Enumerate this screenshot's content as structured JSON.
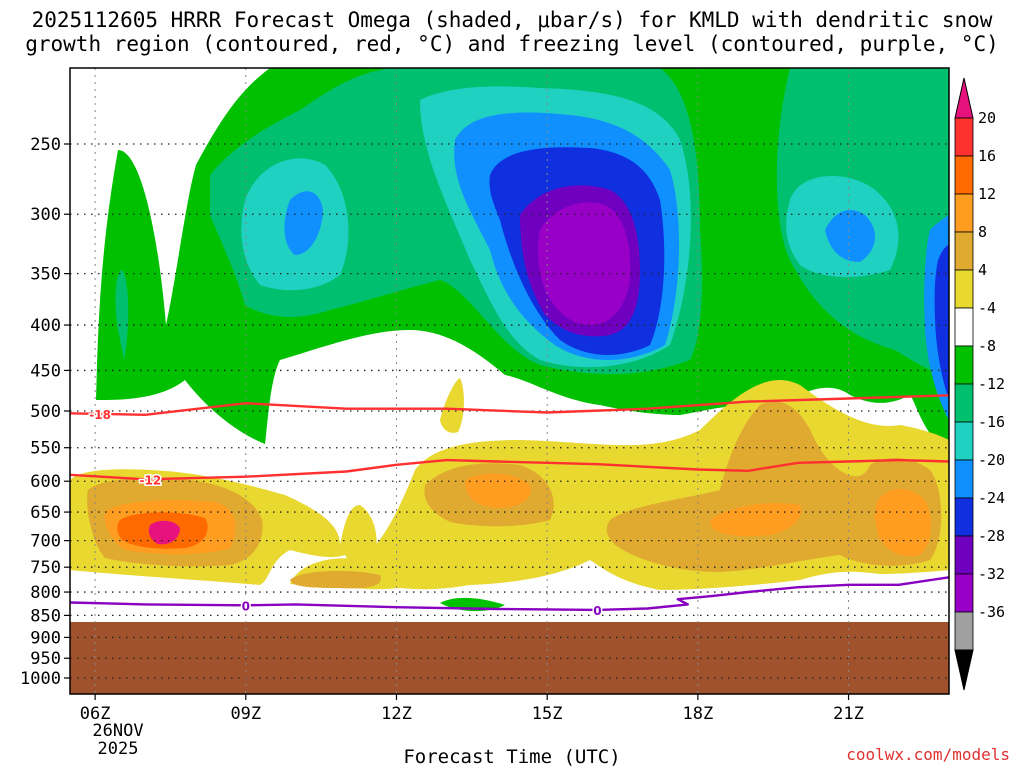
{
  "title_lines": [
    "2025112605 HRRR Forecast Omega (shaded, μbar/s) for KMLD with dendritic snow",
    "growth region (contoured, red, °C) and freezing level (contoured, purple, °C)"
  ],
  "credit": "coolwx.com/models",
  "chart_data": {
    "type": "heatmap",
    "xlabel": "Forecast Time (UTC)",
    "ylabel": "",
    "x_ticks": [
      "06Z",
      "09Z",
      "12Z",
      "15Z",
      "18Z",
      "21Z"
    ],
    "x_date_label": [
      "26NOV",
      "2025"
    ],
    "x_range_hours": [
      5.5,
      23.0
    ],
    "y_ticks": [
      250,
      300,
      350,
      400,
      450,
      500,
      550,
      600,
      650,
      700,
      750,
      800,
      850,
      900,
      950,
      1000
    ],
    "y_range_hpa": [
      200,
      1000
    ],
    "ground_level_hpa": 870,
    "colorbar": {
      "labels": [
        "20",
        "16",
        "12",
        "8",
        "4",
        "-4",
        "-8",
        "-12",
        "-16",
        "-20",
        "-24",
        "-28",
        "-32",
        "-36"
      ],
      "colors": [
        "#e8127f",
        "#ff3030",
        "#ff6a00",
        "#ff9d20",
        "#e0aa30",
        "#e8d830",
        "#ffffff",
        "#00c000",
        "#00c070",
        "#20d0c0",
        "#1090ff",
        "#1030e0",
        "#7000c0",
        "#9800c8",
        "#a0a0a0",
        "#000000"
      ]
    },
    "contours": [
      {
        "name": "-18",
        "color": "#ff3030",
        "points": [
          [
            5.5,
            503
          ],
          [
            7,
            505
          ],
          [
            9,
            490
          ],
          [
            11,
            497
          ],
          [
            13,
            497
          ],
          [
            15,
            502
          ],
          [
            17,
            497
          ],
          [
            19,
            488
          ],
          [
            21,
            484
          ],
          [
            23,
            480
          ]
        ]
      },
      {
        "name": "-12",
        "color": "#ff3030",
        "points": [
          [
            5.5,
            590
          ],
          [
            7,
            597
          ],
          [
            9,
            593
          ],
          [
            11,
            585
          ],
          [
            12,
            575
          ],
          [
            13,
            568
          ],
          [
            14,
            570
          ],
          [
            15,
            572
          ],
          [
            16,
            574
          ],
          [
            18,
            582
          ],
          [
            19,
            584
          ],
          [
            20,
            572
          ],
          [
            21,
            570
          ],
          [
            22,
            568
          ],
          [
            23,
            570
          ]
        ]
      },
      {
        "name": "0",
        "color": "#8800c0",
        "points": [
          [
            5.5,
            822
          ],
          [
            7,
            826
          ],
          [
            9,
            828
          ],
          [
            10,
            826
          ],
          [
            12,
            832
          ],
          [
            14,
            836
          ],
          [
            16,
            838
          ],
          [
            17,
            835
          ],
          [
            17.8,
            826
          ],
          [
            17.6,
            815
          ],
          [
            18.3,
            808
          ],
          [
            19,
            800
          ],
          [
            20,
            790
          ],
          [
            21,
            785
          ],
          [
            22,
            785
          ],
          [
            23,
            770
          ]
        ]
      }
    ],
    "contour_labels": [
      {
        "text": "-18",
        "x": 6.1,
        "y": 504
      },
      {
        "text": "-12",
        "x": 7.1,
        "y": 597
      },
      {
        "text": "0",
        "x": 9.0,
        "y": 828
      },
      {
        "text": "0",
        "x": 16.0,
        "y": 838
      }
    ]
  }
}
